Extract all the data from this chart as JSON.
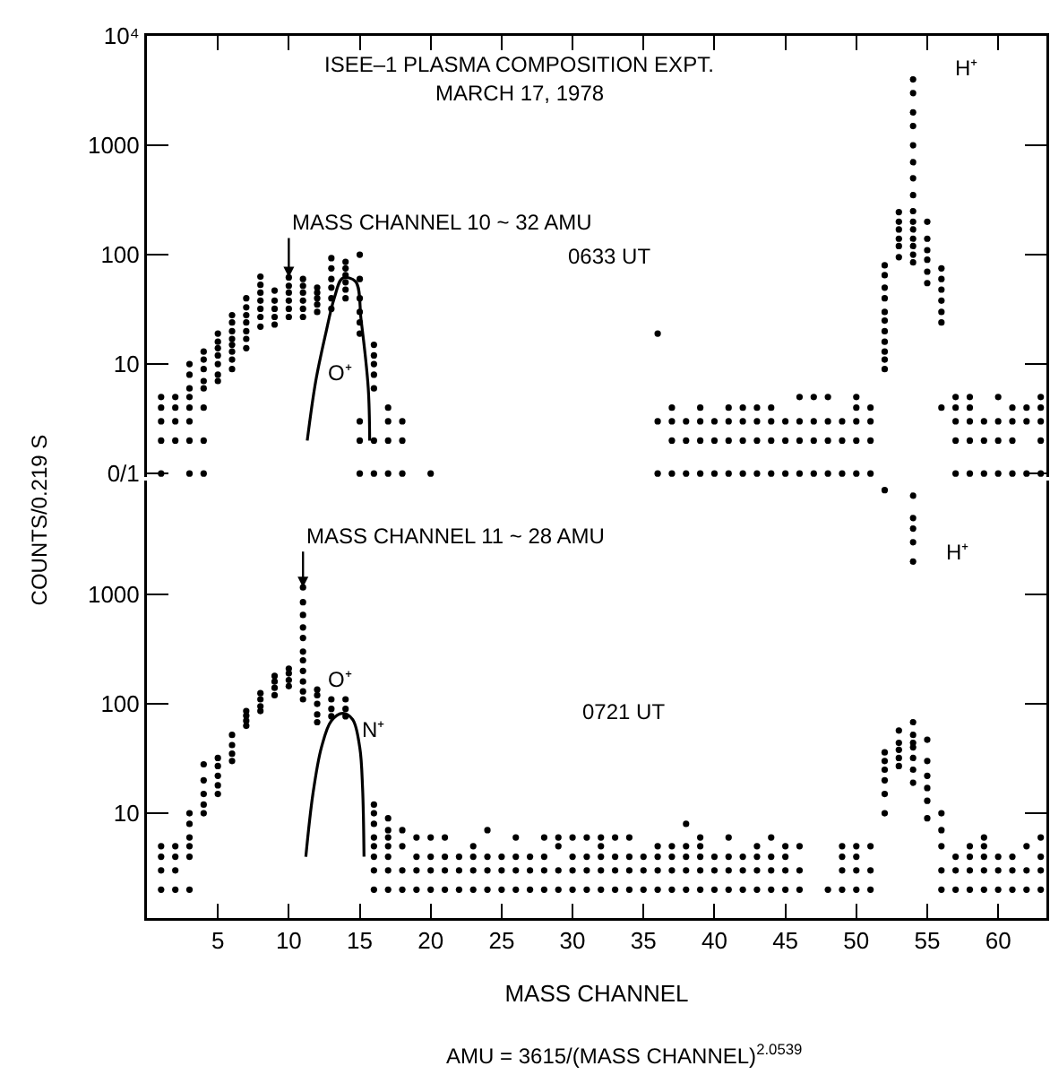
{
  "chart_data": [
    {
      "type": "scatter",
      "title": "ISEE–1 PLASMA COMPOSITION EXPT.",
      "subtitle": "MARCH 17, 1978",
      "tick_labels": "y",
      "xlim": [
        0,
        63.4
      ],
      "xticks": [
        5,
        10,
        15,
        20,
        25,
        30,
        35,
        40,
        45,
        50,
        55,
        60
      ],
      "ylim": [
        0.93,
        10000
      ],
      "log": true,
      "yticks": [
        {
          "value": 1,
          "label": "0/1"
        },
        10,
        100,
        1000,
        {
          "value": 10000,
          "label": "10⁴"
        }
      ],
      "annotations": [
        {
          "text": "MASS CHANNEL 10 ~ 32 AMU",
          "x": 10,
          "y": 62
        },
        "O⁺",
        "H⁺",
        "0633 UT"
      ],
      "series": [
        {
          "marker": "circle",
          "color": "#000000",
          "x": [
            1,
            1,
            1,
            1,
            1,
            2,
            2,
            2,
            2,
            3,
            3,
            3,
            3,
            3,
            3,
            3,
            3,
            4,
            4,
            4,
            4,
            4,
            4,
            4,
            4,
            5,
            5,
            5,
            5,
            5,
            5,
            5,
            6,
            6,
            6,
            6,
            6,
            6,
            6,
            6,
            7,
            7,
            7,
            7,
            7,
            7,
            7,
            8,
            8,
            8,
            8,
            8,
            8,
            8,
            9,
            9,
            9,
            9,
            9,
            10,
            10,
            10,
            10,
            10,
            10,
            11,
            11,
            11,
            11,
            11,
            11,
            12,
            12,
            12,
            12,
            12,
            13,
            13,
            13,
            13,
            13,
            13,
            14,
            14,
            14,
            14,
            14,
            14,
            15,
            15,
            15,
            15,
            15,
            15,
            15,
            15,
            15,
            16,
            16,
            16,
            16,
            16,
            16,
            16,
            17,
            17,
            17,
            17,
            18,
            18,
            18,
            20,
            36,
            36,
            36,
            37,
            37,
            37,
            37,
            38,
            38,
            38,
            39,
            39,
            39,
            39,
            40,
            40,
            40,
            41,
            41,
            41,
            41,
            42,
            42,
            42,
            42,
            43,
            43,
            43,
            43,
            44,
            44,
            44,
            44,
            45,
            45,
            45,
            46,
            46,
            46,
            46,
            47,
            47,
            47,
            47,
            48,
            48,
            48,
            48,
            49,
            49,
            49,
            50,
            50,
            50,
            50,
            50,
            51,
            51,
            51,
            51,
            52,
            52,
            52,
            52,
            52,
            52,
            52,
            52,
            52,
            52,
            52,
            53,
            53,
            53,
            53,
            53,
            53,
            54,
            54,
            54,
            54,
            54,
            54,
            54,
            54,
            54,
            54,
            54,
            54,
            54,
            54,
            54,
            55,
            55,
            55,
            55,
            55,
            55,
            56,
            56,
            56,
            56,
            56,
            56,
            56,
            57,
            57,
            57,
            57,
            57,
            58,
            58,
            58,
            58,
            58,
            59,
            59,
            59,
            60,
            60,
            60,
            60,
            61,
            61,
            61,
            61,
            62,
            62,
            62,
            63,
            63,
            63,
            63,
            63
          ],
          "values": [
            1,
            2,
            3,
            4,
            5,
            2,
            3,
            4,
            5,
            1,
            2,
            3,
            4,
            5,
            6,
            8,
            10,
            1,
            2,
            4,
            6,
            7,
            9,
            11,
            13,
            7,
            8,
            10,
            12,
            14,
            16,
            19,
            9,
            11,
            13,
            15,
            17,
            20,
            24,
            28,
            14,
            17,
            20,
            24,
            28,
            33,
            40,
            22,
            27,
            32,
            38,
            45,
            53,
            63,
            23,
            27,
            32,
            38,
            47,
            27,
            32,
            38,
            45,
            52,
            62,
            27,
            32,
            38,
            45,
            52,
            60,
            30,
            35,
            40,
            45,
            50,
            32,
            40,
            50,
            60,
            75,
            93,
            40,
            48,
            56,
            65,
            75,
            86,
            1,
            2,
            3,
            19,
            24,
            30,
            40,
            60,
            100,
            1,
            2,
            6,
            8,
            10,
            12,
            15,
            1,
            2,
            3,
            4,
            1,
            2,
            3,
            1,
            1,
            3,
            19,
            1,
            2,
            3,
            4,
            1,
            2,
            3,
            1,
            2,
            3,
            4,
            1,
            2,
            3,
            1,
            2,
            3,
            4,
            1,
            2,
            3,
            4,
            1,
            2,
            3,
            4,
            1,
            2,
            3,
            4,
            1,
            2,
            3,
            1,
            2,
            3,
            5,
            1,
            2,
            3,
            5,
            1,
            2,
            3,
            5,
            1,
            2,
            3,
            1,
            2,
            3,
            4,
            5,
            1,
            2,
            3,
            4,
            9,
            11,
            13,
            16,
            20,
            25,
            30,
            40,
            50,
            65,
            80,
            95,
            120,
            140,
            170,
            200,
            245,
            85,
            100,
            120,
            140,
            170,
            200,
            250,
            350,
            500,
            700,
            1000,
            1500,
            2000,
            3000,
            4000,
            55,
            70,
            90,
            110,
            140,
            200,
            4,
            24,
            30,
            38,
            48,
            60,
            75,
            1,
            2,
            3,
            4,
            5,
            1,
            2,
            3,
            4,
            5,
            1,
            2,
            3,
            1,
            2,
            3,
            5,
            1,
            2,
            3,
            4,
            1,
            3,
            4,
            1,
            2,
            3,
            4,
            5
          ]
        },
        {
          "type": "line",
          "marker": "none",
          "color": "#000000",
          "x": [
            11.3,
            11.9,
            12.6,
            13.2,
            13.8,
            14.7,
            15.1,
            15.6,
            15.7
          ],
          "values": [
            2,
            7,
            19,
            40,
            61,
            57,
            25,
            6,
            2
          ]
        }
      ]
    },
    {
      "type": "scatter",
      "xlabel": "MASS CHANNEL",
      "ylabel": "COUNTS/0.219 S",
      "xlim": [
        0,
        63.4
      ],
      "xticks": [
        5,
        10,
        15,
        20,
        25,
        30,
        35,
        40,
        45,
        50,
        55,
        60
      ],
      "ylim": [
        1.1,
        11000
      ],
      "log": true,
      "yticks": [
        10,
        100,
        1000
      ],
      "annotations": [
        {
          "text": "MASS CHANNEL 11 ~ 28 AMU",
          "x": 11,
          "y": 1160
        },
        "O⁺",
        "N⁺",
        "H⁺",
        "0721 UT",
        "AMU = 3615/(MASS CHANNEL)$^{2.0539}$"
      ],
      "series": [
        {
          "marker": "circle",
          "color": "#000000",
          "x": [
            1,
            1,
            1,
            1,
            2,
            2,
            2,
            2,
            3,
            3,
            3,
            3,
            3,
            3,
            4,
            4,
            4,
            4,
            4,
            5,
            5,
            5,
            5,
            5,
            6,
            6,
            6,
            6,
            7,
            7,
            7,
            7,
            8,
            8,
            8,
            8,
            9,
            9,
            9,
            9,
            10,
            10,
            10,
            10,
            11,
            11,
            11,
            11,
            11,
            11,
            11,
            11,
            11,
            11,
            11,
            12,
            12,
            12,
            12,
            12,
            13,
            13,
            13,
            14,
            14,
            14,
            16,
            16,
            16,
            16,
            16,
            16,
            16,
            16,
            17,
            17,
            17,
            17,
            17,
            17,
            17,
            18,
            18,
            18,
            18,
            19,
            19,
            19,
            19,
            20,
            20,
            20,
            20,
            21,
            21,
            21,
            21,
            22,
            22,
            22,
            23,
            23,
            23,
            23,
            24,
            24,
            24,
            24,
            25,
            25,
            25,
            26,
            26,
            26,
            26,
            27,
            27,
            27,
            28,
            28,
            28,
            28,
            29,
            29,
            29,
            29,
            30,
            30,
            30,
            30,
            31,
            31,
            31,
            31,
            32,
            32,
            32,
            32,
            32,
            33,
            33,
            33,
            33,
            34,
            34,
            34,
            34,
            35,
            35,
            35,
            36,
            36,
            36,
            36,
            37,
            37,
            37,
            37,
            38,
            38,
            38,
            38,
            38,
            39,
            39,
            39,
            39,
            39,
            40,
            40,
            40,
            41,
            41,
            41,
            41,
            42,
            42,
            42,
            43,
            43,
            43,
            43,
            44,
            44,
            44,
            44,
            45,
            45,
            45,
            45,
            46,
            46,
            46,
            48,
            49,
            49,
            49,
            49,
            50,
            50,
            50,
            50,
            51,
            51,
            51,
            52,
            52,
            52,
            52,
            52,
            52,
            52,
            53,
            53,
            53,
            53,
            53,
            54,
            54,
            54,
            54,
            54,
            54,
            54,
            54,
            54,
            54,
            54,
            54,
            55,
            55,
            55,
            55,
            55,
            55,
            56,
            56,
            56,
            56,
            56,
            57,
            57,
            57,
            58,
            58,
            58,
            58,
            59,
            59,
            59,
            59,
            59,
            60,
            60,
            60,
            61,
            61,
            61,
            62,
            62,
            62,
            63,
            63,
            63,
            63
          ],
          "values": [
            2,
            3,
            4,
            5,
            2,
            3,
            4,
            5,
            2,
            4,
            5,
            6,
            8,
            10,
            10,
            12,
            15,
            20,
            28,
            15,
            18,
            22,
            27,
            32,
            30,
            35,
            42,
            52,
            63,
            70,
            78,
            86,
            86,
            95,
            110,
            125,
            120,
            140,
            160,
            180,
            145,
            165,
            190,
            210,
            110,
            130,
            160,
            200,
            250,
            300,
            400,
            500,
            650,
            850,
            1160,
            68,
            80,
            100,
            120,
            135,
            77,
            90,
            110,
            77,
            90,
            110,
            2,
            3,
            4,
            5,
            6,
            8,
            10,
            12,
            2,
            3,
            4,
            5,
            6,
            7,
            9,
            2,
            3,
            5,
            7,
            2,
            3,
            4,
            6,
            2,
            3,
            4,
            6,
            2,
            3,
            4,
            6,
            2,
            3,
            4,
            2,
            3,
            4,
            5,
            2,
            3,
            4,
            7,
            2,
            3,
            4,
            2,
            3,
            4,
            6,
            2,
            3,
            4,
            2,
            3,
            4,
            6,
            2,
            3,
            5,
            6,
            2,
            3,
            4,
            6,
            2,
            3,
            4,
            6,
            2,
            3,
            4,
            5,
            6,
            2,
            3,
            4,
            6,
            2,
            3,
            4,
            6,
            2,
            3,
            4,
            2,
            3,
            4,
            5,
            2,
            3,
            4,
            5,
            2,
            3,
            4,
            5,
            8,
            2,
            3,
            4,
            5,
            6,
            2,
            3,
            4,
            2,
            3,
            4,
            6,
            2,
            3,
            4,
            2,
            3,
            4,
            5,
            2,
            3,
            4,
            6,
            2,
            3,
            4,
            5,
            2,
            3,
            5,
            2,
            2,
            3,
            4,
            5,
            2,
            3,
            4,
            5,
            2,
            3,
            5,
            10,
            15,
            20,
            25,
            30,
            36,
            9000,
            27,
            32,
            38,
            44,
            57,
            19,
            25,
            32,
            40,
            44,
            52,
            68,
            2000,
            3000,
            4000,
            5000,
            8000,
            9,
            13,
            17,
            22,
            30,
            47,
            2,
            3,
            5,
            7,
            10,
            2,
            3,
            4,
            2,
            3,
            4,
            5,
            2,
            3,
            4,
            5,
            6,
            2,
            3,
            4,
            2,
            3,
            4,
            2,
            3,
            5,
            2,
            3,
            4,
            6
          ]
        },
        {
          "type": "line",
          "marker": "none",
          "color": "#000000",
          "x": [
            11.2,
            11.7,
            12.3,
            13,
            13.8,
            14.5,
            15,
            15.2,
            15.3
          ],
          "values": [
            4,
            15,
            40,
            70,
            82,
            72,
            40,
            17,
            4
          ]
        }
      ]
    }
  ]
}
